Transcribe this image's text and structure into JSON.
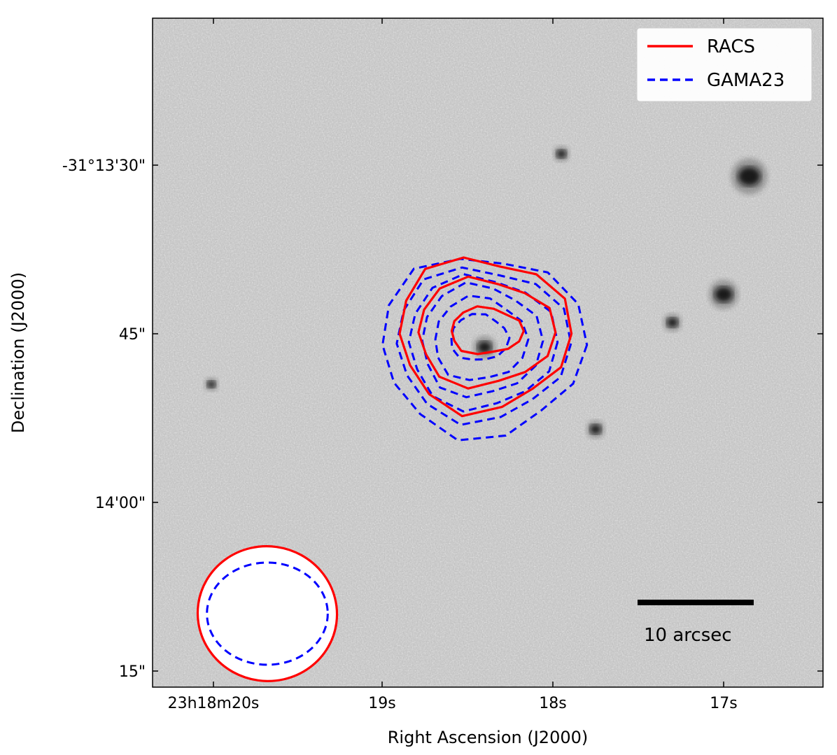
{
  "chart_data": {
    "type": "image-contour",
    "title": "",
    "xlabel": "Right Ascension (J2000)",
    "ylabel": "Declination (J2000)",
    "x_ticks": [
      {
        "label": "23h18m20s",
        "ra_sec": 20.0
      },
      {
        "label": "19s",
        "ra_sec": 19.0
      },
      {
        "label": "18s",
        "ra_sec": 18.0
      },
      {
        "label": "17s",
        "ra_sec": 17.0
      }
    ],
    "y_ticks": [
      {
        "label": "-31°13'30\"",
        "dec_arcsec": 30
      },
      {
        "label": "45\"",
        "dec_arcsec": 45
      },
      {
        "label": "14'00\"",
        "dec_arcsec": 60
      },
      {
        "label": "15\"",
        "dec_arcsec": 75
      }
    ],
    "xlim_ra_sec": [
      20.3,
      16.5
    ],
    "ylim_dec_arcsec": [
      17,
      76
    ],
    "legend": {
      "placement": "top-right",
      "entries": [
        {
          "label": "RACS",
          "color": "#ff0000",
          "style": "solid"
        },
        {
          "label": "GAMA23",
          "color": "#0000ff",
          "style": "dashed"
        }
      ]
    },
    "scalebar": {
      "label": "10 arcsec",
      "length_arcsec": 10
    },
    "contour_centre": {
      "ra_sec": 18.4,
      "dec_arcsec": 45
    },
    "racs_contours_radii_arcsec": [
      [
        3.1,
        2.0
      ],
      [
        5.9,
        4.6
      ],
      [
        7.4,
        6.6
      ]
    ],
    "gama_contours_radii_arcsec": [
      [
        2.5,
        2.0
      ],
      [
        4.0,
        3.6
      ],
      [
        5.2,
        4.8
      ],
      [
        6.4,
        5.7
      ],
      [
        7.5,
        6.6
      ],
      [
        8.8,
        7.8
      ]
    ],
    "beams": {
      "racs_arcsec": [
        6.0,
        5.8
      ],
      "gama_arcsec": [
        5.2,
        4.4
      ]
    },
    "sources": [
      {
        "ra_sec": 18.4,
        "dec_arcsec": 46.2,
        "size": 1.0
      },
      {
        "ra_sec": 16.85,
        "dec_arcsec": 31.0,
        "size": 1.6
      },
      {
        "ra_sec": 17.0,
        "dec_arcsec": 41.5,
        "size": 1.3
      },
      {
        "ra_sec": 17.95,
        "dec_arcsec": 29.0,
        "size": 0.7
      },
      {
        "ra_sec": 17.3,
        "dec_arcsec": 44.0,
        "size": 0.8
      },
      {
        "ra_sec": 17.75,
        "dec_arcsec": 53.5,
        "size": 0.8
      },
      {
        "ra_sec": 20.0,
        "dec_arcsec": 49.5,
        "size": 0.6
      }
    ],
    "colors": {
      "racs": "#ff0000",
      "gama": "#0000ff",
      "background": "#bdbdbd"
    }
  }
}
